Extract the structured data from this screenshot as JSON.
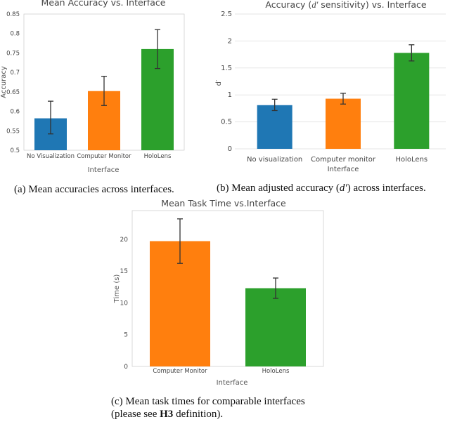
{
  "chart_data": [
    {
      "type": "bar",
      "title": "Mean Accuracy vs. Interface",
      "xlabel": "Interface",
      "ylabel": "Accuracy",
      "categories": [
        "No Visualization",
        "Computer Monitor",
        "HoloLens"
      ],
      "values": [
        0.582,
        0.652,
        0.76
      ],
      "err_low": [
        0.542,
        0.615,
        0.71
      ],
      "err_high": [
        0.626,
        0.69,
        0.81
      ],
      "colors": [
        "#1f77b4",
        "#ff7f0e",
        "#2ca02c"
      ],
      "ylim": [
        0.5,
        0.85
      ],
      "yticks": [
        "0.5",
        "0.55",
        "0.6",
        "0.65",
        "0.7",
        "0.75",
        "0.8",
        "0.85"
      ],
      "ytick_values": [
        0.5,
        0.55,
        0.6,
        0.65,
        0.7,
        0.75,
        0.8,
        0.85
      ]
    },
    {
      "type": "bar",
      "title_parts": [
        "Accuracy (",
        "d′",
        " sensitivity) vs. Interface"
      ],
      "xlabel": "Interface",
      "ylabel": "d′",
      "categories": [
        [
          "No visualization"
        ],
        [
          "Computer monitor"
        ],
        [
          "HoloLens"
        ]
      ],
      "values": [
        0.81,
        0.93,
        1.78
      ],
      "err_low": [
        0.71,
        0.83,
        1.63
      ],
      "err_high": [
        0.92,
        1.03,
        1.93
      ],
      "colors": [
        "#1f77b4",
        "#ff7f0e",
        "#2ca02c"
      ],
      "ylim": [
        0,
        2.5
      ],
      "yticks": [
        "0",
        "0.5",
        "1",
        "1.5",
        "2",
        "2.5"
      ],
      "ytick_values": [
        0,
        0.5,
        1,
        1.5,
        2,
        2.5
      ]
    },
    {
      "type": "bar",
      "title": "Mean Task Time vs.Interface",
      "xlabel": "Interface",
      "ylabel": "Time (s)",
      "categories": [
        "Computer Monitor",
        "HoloLens"
      ],
      "values": [
        19.7,
        12.3
      ],
      "err_low": [
        16.2,
        10.7
      ],
      "err_high": [
        23.2,
        13.9
      ],
      "colors": [
        "#ff7f0e",
        "#2ca02c"
      ],
      "ylim": [
        0,
        24.5
      ],
      "yticks": [
        "0",
        "5",
        "10",
        "15",
        "20"
      ],
      "ytick_values": [
        0,
        5,
        10,
        15,
        20
      ]
    }
  ],
  "captions": {
    "a": "(a) Mean accuracies across interfaces.",
    "b_prefix": "(b) Mean adjusted accuracy (",
    "b_italic": "d′",
    "b_suffix": ") across interfaces.",
    "c_line1": "(c) Mean task times for comparable interfaces",
    "c_line2_prefix": "(please see ",
    "c_line2_bold": "H3",
    "c_line2_suffix": " definition)."
  }
}
